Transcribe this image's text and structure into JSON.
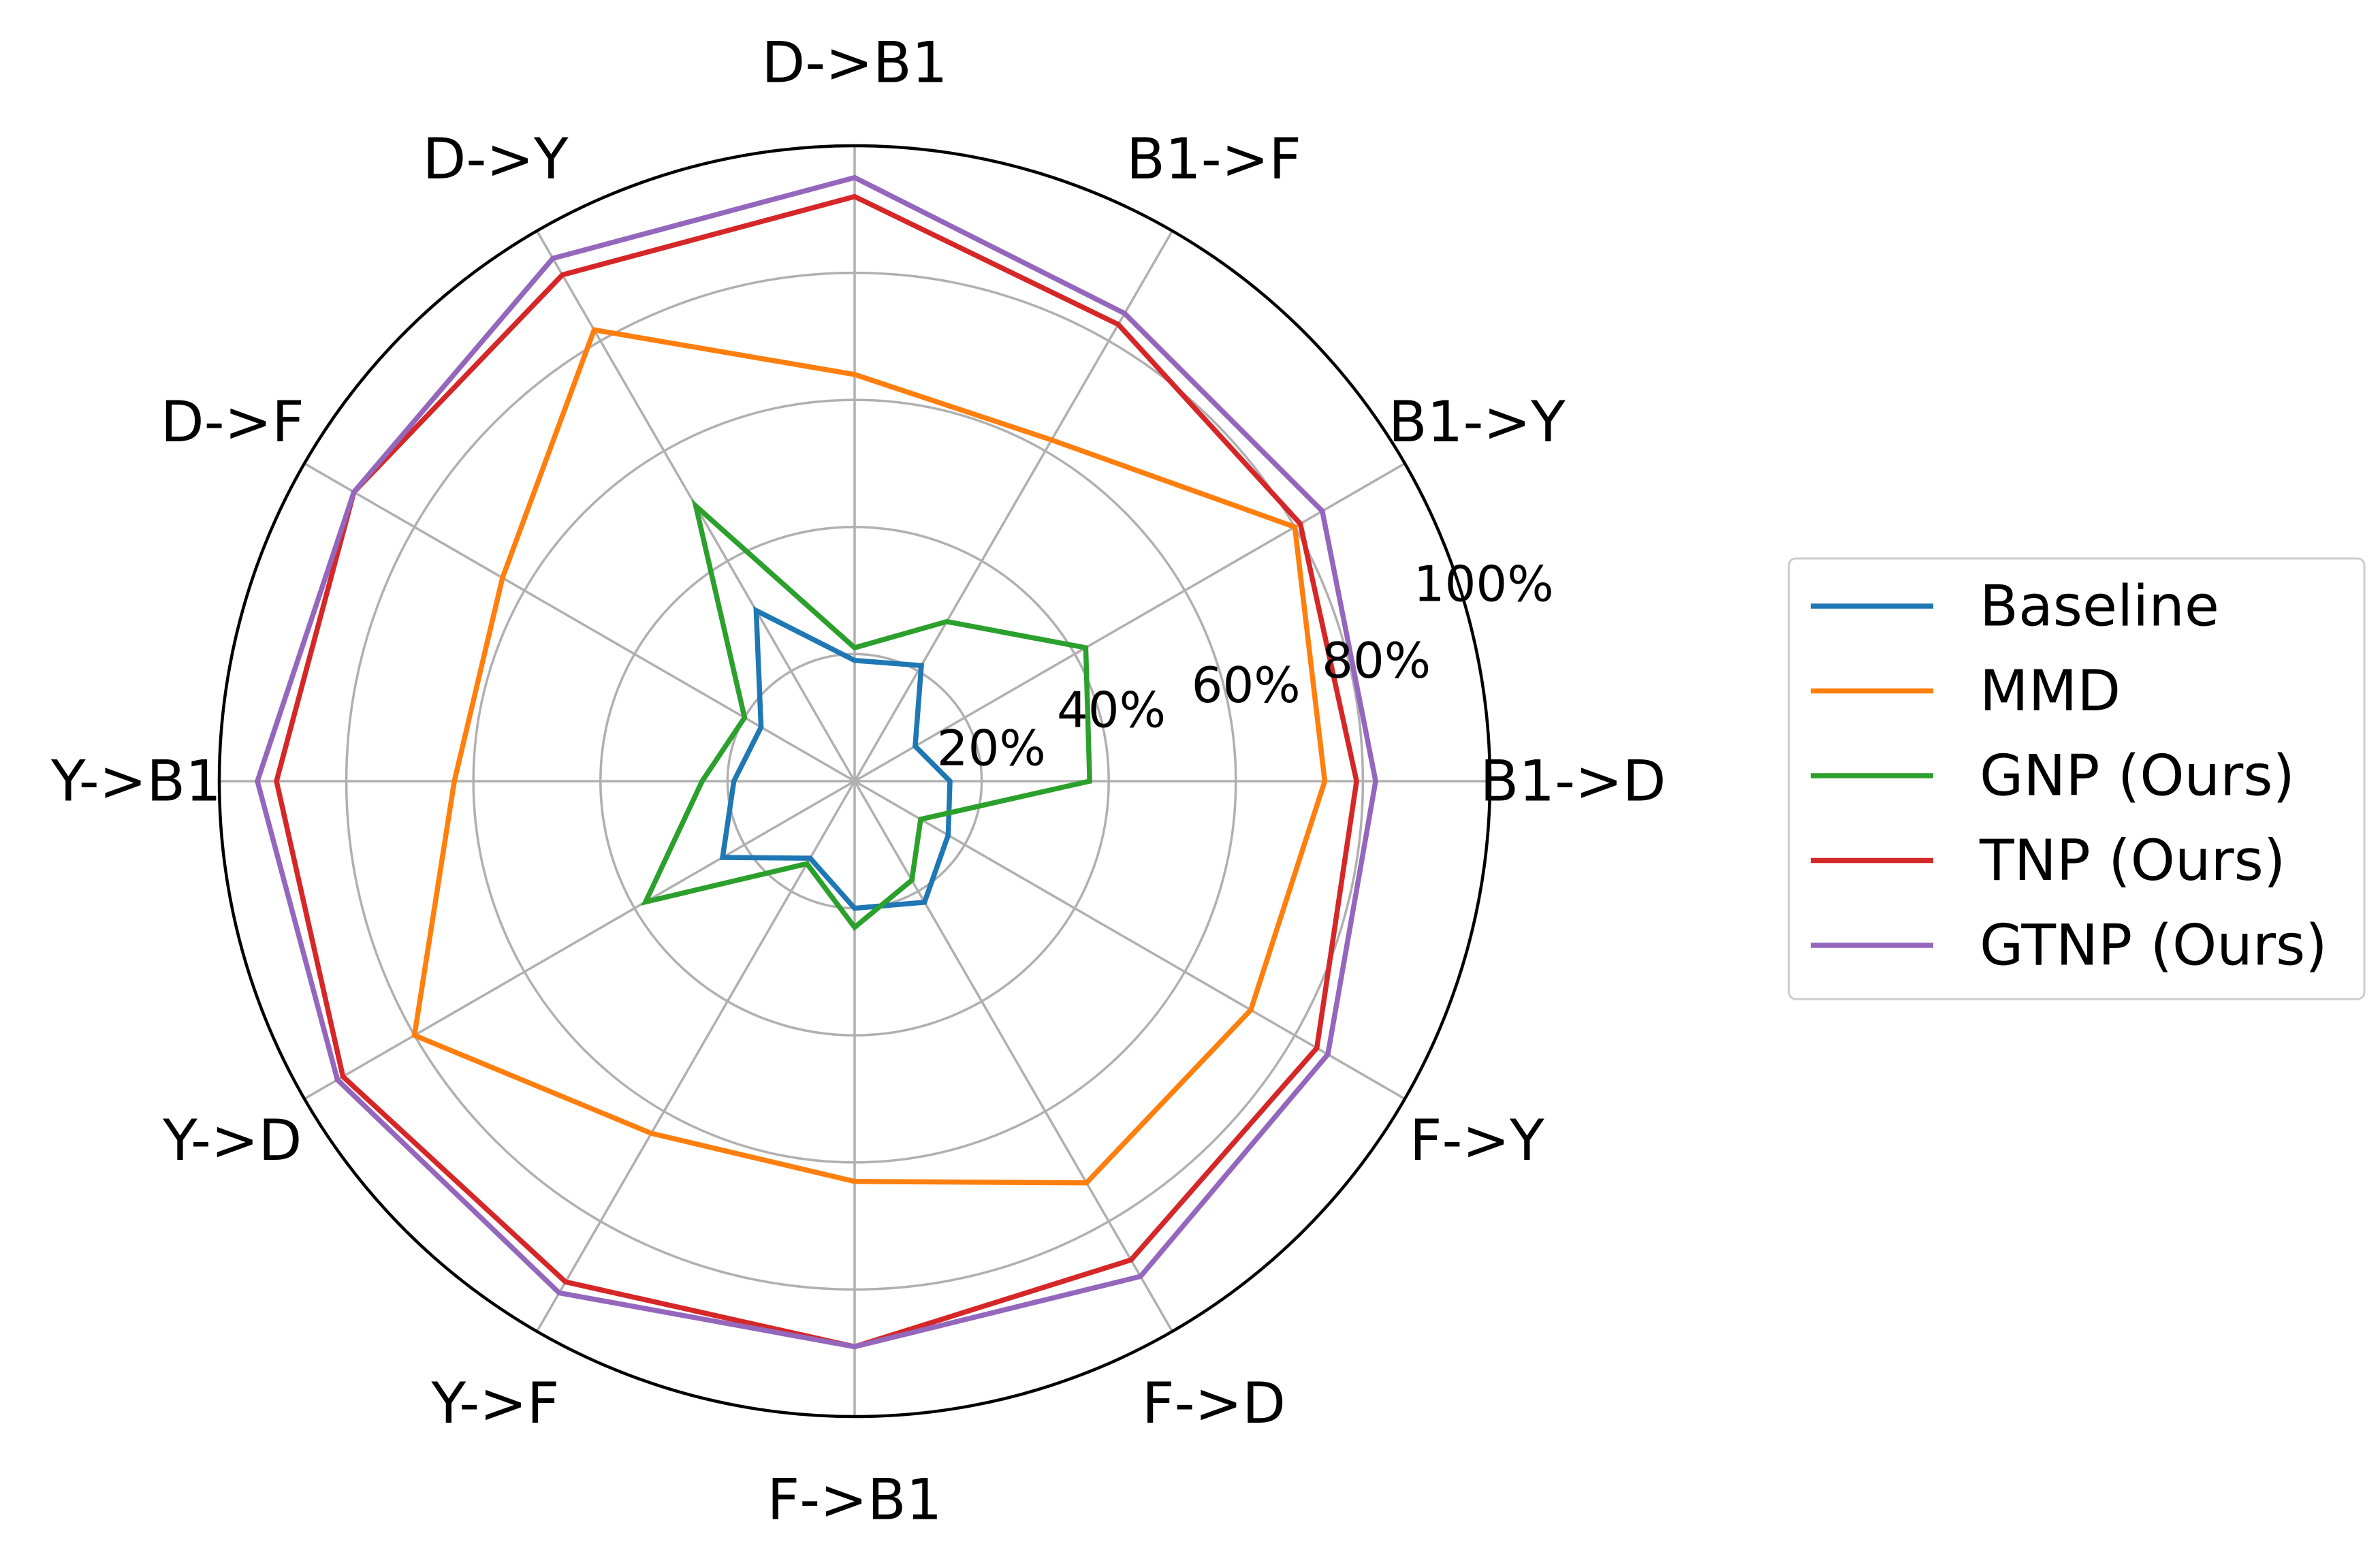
{
  "chart_data": {
    "type": "line",
    "projection": "polar",
    "categories": [
      "B1->D",
      "B1->Y",
      "B1->F",
      "D->B1",
      "D->Y",
      "D->F",
      "Y->B1",
      "Y->D",
      "Y->F",
      "F->B1",
      "F->D",
      "F->Y"
    ],
    "r_range": [
      0,
      100
    ],
    "r_ticks": [
      20,
      40,
      60,
      80,
      100
    ],
    "r_tick_labels": [
      "20%",
      "40%",
      "60%",
      "80%",
      "100%"
    ],
    "grid": true,
    "legend_position": "center right",
    "series": [
      {
        "name": "Baseline",
        "color": "#1f77b4",
        "values": [
          15,
          11,
          21,
          19,
          31,
          17,
          19,
          24,
          14,
          20,
          22,
          17
        ]
      },
      {
        "name": "MMD",
        "color": "#ff7f0e",
        "values": [
          74,
          80,
          62,
          64,
          82,
          64,
          63,
          80,
          64,
          63,
          73,
          72
        ]
      },
      {
        "name": "GNP (Ours)",
        "color": "#2ca02c",
        "values": [
          37,
          42,
          29,
          21,
          50,
          20,
          24,
          38,
          15,
          23,
          18,
          12
        ]
      },
      {
        "name": "TNP (Ours)",
        "color": "#d62728",
        "values": [
          79,
          81,
          83,
          92,
          92,
          91,
          91,
          93,
          91,
          89,
          87,
          84
        ]
      },
      {
        "name": "GTNP (Ours)",
        "color": "#9467bd",
        "values": [
          82,
          85,
          85,
          95,
          95,
          91,
          94,
          94,
          93,
          89,
          90,
          86
        ]
      }
    ]
  }
}
